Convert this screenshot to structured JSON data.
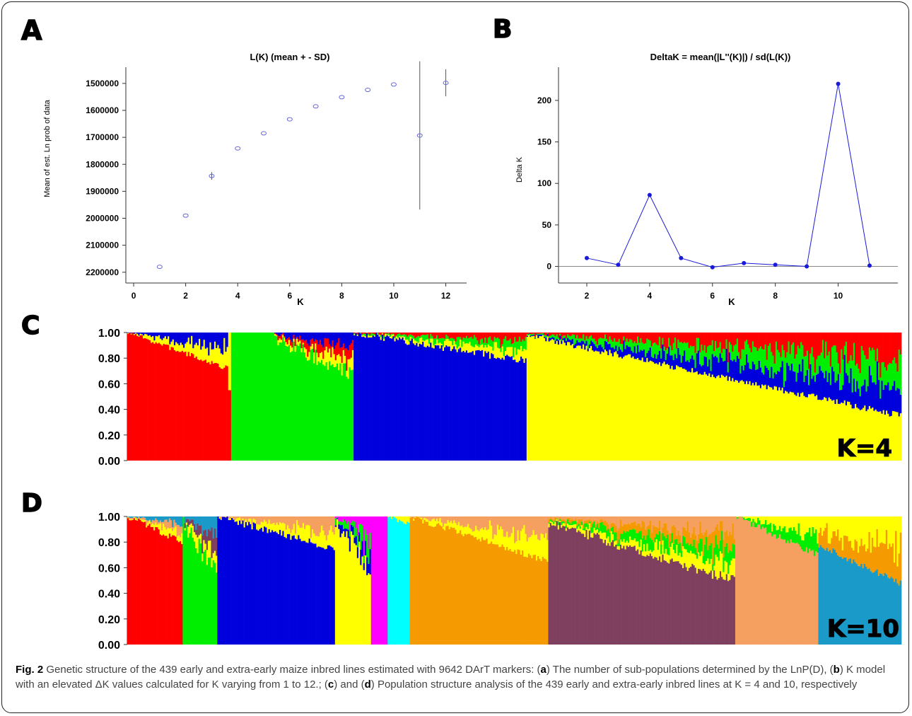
{
  "panels": {
    "A": "A",
    "B": "B",
    "C": "C",
    "D": "D"
  },
  "chart_data": [
    {
      "type": "scatter",
      "panel": "A",
      "title": "L(K) (mean + - SD)",
      "xlabel": "K",
      "ylabel": "Mean of est. Ln prob of data",
      "xticks": [
        "0",
        "2",
        "4",
        "6",
        "8",
        "10",
        "12"
      ],
      "yticks": [
        "1500000",
        "1600000",
        "1700000",
        "1800000",
        "1900000",
        "2000000",
        "2100000",
        "2200000"
      ],
      "xlim": [
        -0.3,
        12.8
      ],
      "ylim": [
        1440000,
        2240000
      ],
      "marker_color": "#6666dd",
      "x": [
        1,
        2,
        3,
        4,
        5,
        6,
        7,
        8,
        9,
        10,
        11,
        12
      ],
      "y": [
        2180000,
        1990000,
        1843000,
        1741000,
        1685000,
        1633000,
        1585000,
        1551000,
        1524000,
        1504000,
        1693000,
        1498000
      ],
      "sd": [
        0,
        0,
        14000,
        0,
        0,
        0,
        0,
        0,
        0,
        0,
        275000,
        50000
      ]
    },
    {
      "type": "line",
      "panel": "B",
      "title": "DeltaK = mean(|L''(K)|) / sd(L(K))",
      "xlabel": "K",
      "ylabel": "Delta K",
      "xticks": [
        "2",
        "4",
        "6",
        "8",
        "10"
      ],
      "yticks": [
        "0",
        "50",
        "100",
        "150",
        "200"
      ],
      "xlim": [
        1.1,
        11.9
      ],
      "ylim": [
        -20,
        240
      ],
      "line_color": "#1a1adb",
      "x": [
        2,
        3,
        4,
        5,
        6,
        7,
        8,
        9,
        10,
        11
      ],
      "y": [
        10,
        2,
        86,
        10,
        -1,
        4,
        2,
        0,
        220,
        1
      ]
    },
    {
      "type": "area",
      "panel": "C",
      "annotation": "K=4",
      "yticks": [
        "1.00",
        "0.80",
        "0.60",
        "0.40",
        "0.20",
        "0.00"
      ],
      "ylim": [
        0,
        1
      ],
      "clusters": [
        "#ff0000",
        "#00ee00",
        "#0000dd",
        "#ffff00"
      ]
    },
    {
      "type": "area",
      "panel": "D",
      "annotation": "K=10",
      "yticks": [
        "1.00",
        "0.80",
        "0.60",
        "0.40",
        "0.20",
        "0.00"
      ],
      "ylim": [
        0,
        1
      ],
      "clusters": [
        "#ff0000",
        "#00ee00",
        "#0000dd",
        "#ffff00",
        "#ff00ff",
        "#00ffff",
        "#f59a00",
        "#7f3f5f",
        "#f5a060",
        "#1a9ac8"
      ]
    }
  ],
  "caption": {
    "fig_label": "Fig. 2",
    "text_1": " Genetic structure of the 439 early and extra-early maize inbred lines estimated with 9642 DArT markers: (",
    "a": "a",
    "text_2": ") The number of sub-populations determined by the LnP(D), (",
    "b": "b",
    "text_3": ") K model with an elevated ΔK values calculated for K varying from 1 to 12.; (",
    "c": "c",
    "text_4": ") and (",
    "d": "d",
    "text_5": ") Population structure analysis of the 439 early and extra-early inbred lines at K = 4 and 10, respectively"
  }
}
